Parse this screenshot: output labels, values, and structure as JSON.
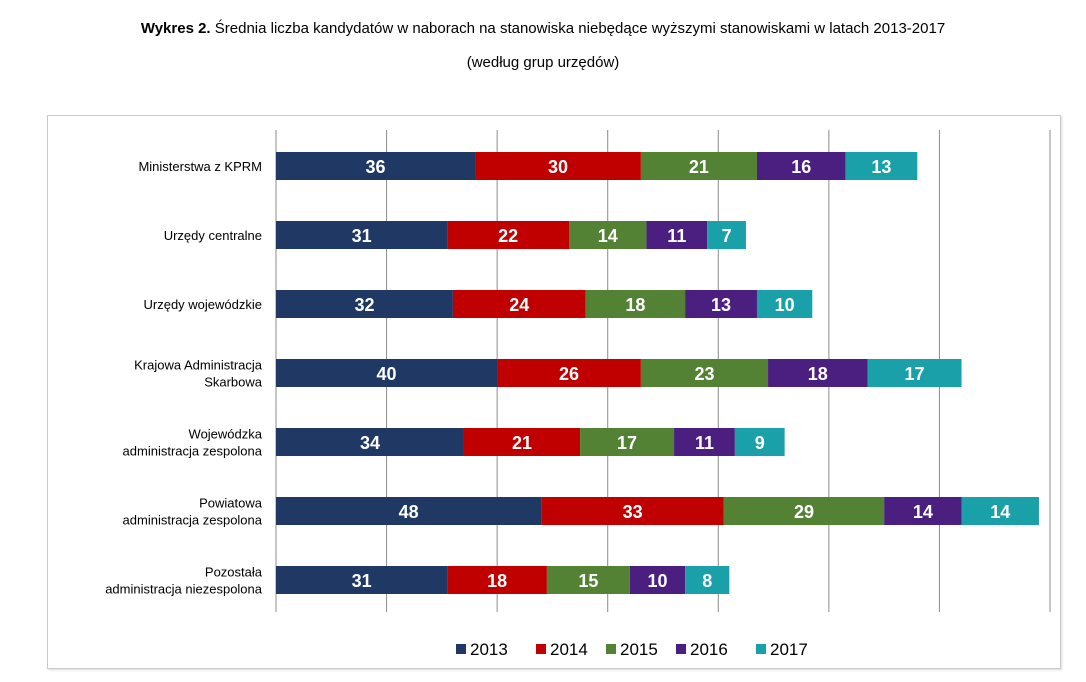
{
  "title": {
    "prefix": "Wykres 2.",
    "main": "Średnia liczba kandydatów w naborach na stanowiska niebędące wyższymi stanowiskami w latach 2013-2017",
    "subtitle": "(według grup urzędów)"
  },
  "chart_data": {
    "type": "bar",
    "orientation": "horizontal",
    "stacked": true,
    "categories": [
      [
        "Ministerstwa z KPRM"
      ],
      [
        "Urzędy  centralne"
      ],
      [
        "Urzędy wojewódzkie"
      ],
      [
        "Krajowa Administracja",
        "Skarbowa"
      ],
      [
        "Wojewódzka",
        "administracja zespolona"
      ],
      [
        "Powiatowa",
        "administracja zespolona"
      ],
      [
        "Pozostała",
        "administracja niezespolona"
      ]
    ],
    "series": [
      {
        "name": "2013",
        "color": "#1F3864",
        "values": [
          36,
          31,
          32,
          40,
          34,
          48,
          31
        ]
      },
      {
        "name": "2014",
        "color": "#C00000",
        "values": [
          30,
          22,
          24,
          26,
          21,
          33,
          18
        ]
      },
      {
        "name": "2015",
        "color": "#548235",
        "values": [
          21,
          14,
          18,
          23,
          17,
          29,
          15
        ]
      },
      {
        "name": "2016",
        "color": "#4B1F7F",
        "values": [
          16,
          11,
          13,
          18,
          11,
          14,
          10
        ]
      },
      {
        "name": "2017",
        "color": "#1AA0A8",
        "values": [
          13,
          7,
          10,
          17,
          9,
          14,
          8
        ]
      }
    ],
    "xlim": [
      0,
      140
    ],
    "grid": true,
    "legend_position": "bottom",
    "data_labels": true
  }
}
